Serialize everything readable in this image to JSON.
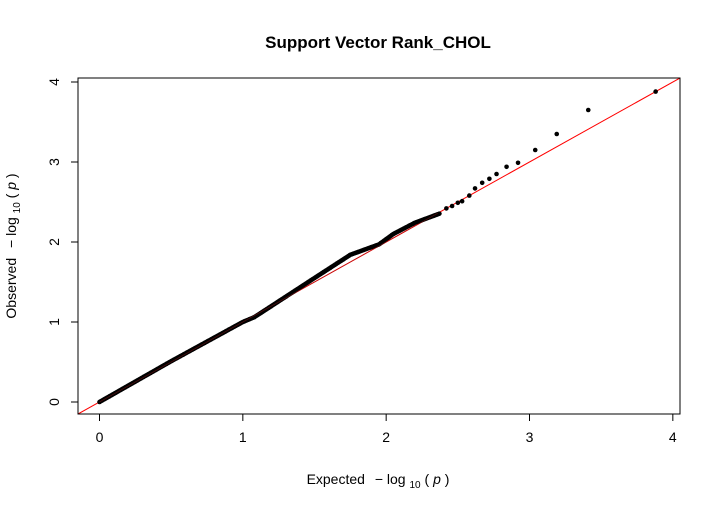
{
  "chart_data": {
    "type": "scatter",
    "title": "Support Vector Rank_CHOL",
    "xlabel": {
      "prefix": "Expected",
      "minus": "−",
      "log": "log",
      "sub": "10",
      "open": "(",
      "var": "p",
      "close": ")"
    },
    "ylabel": {
      "prefix": "Observed",
      "minus": "−",
      "log": "log",
      "sub": "10",
      "open": "(",
      "var": "p",
      "close": ")"
    },
    "xlim": [
      -0.15,
      4.05
    ],
    "ylim": [
      -0.15,
      4.05
    ],
    "xticks": [
      0,
      1,
      2,
      3,
      4
    ],
    "yticks": [
      0,
      1,
      2,
      3,
      4
    ],
    "reference_line": {
      "intercept": 0,
      "slope": 1,
      "color": "#ff0000"
    },
    "point_color": "#000000",
    "dense_segments": [
      {
        "name": "bulk",
        "points": [
          [
            0.0,
            0.0
          ],
          [
            0.5,
            0.51
          ],
          [
            1.0,
            1.0
          ],
          [
            1.08,
            1.06
          ],
          [
            1.5,
            1.55
          ],
          [
            1.75,
            1.84
          ],
          [
            1.95,
            1.97
          ],
          [
            2.05,
            2.1
          ],
          [
            2.2,
            2.24
          ],
          [
            2.32,
            2.32
          ],
          [
            2.38,
            2.36
          ]
        ]
      }
    ],
    "sparse_points": [
      [
        2.42,
        2.42
      ],
      [
        2.46,
        2.45
      ],
      [
        2.5,
        2.49
      ],
      [
        2.53,
        2.51
      ],
      [
        2.58,
        2.58
      ],
      [
        2.62,
        2.67
      ],
      [
        2.67,
        2.74
      ],
      [
        2.72,
        2.79
      ],
      [
        2.77,
        2.85
      ],
      [
        2.84,
        2.94
      ],
      [
        2.92,
        2.99
      ],
      [
        3.04,
        3.15
      ],
      [
        3.19,
        3.35
      ],
      [
        3.41,
        3.65
      ],
      [
        3.88,
        3.88
      ]
    ]
  }
}
